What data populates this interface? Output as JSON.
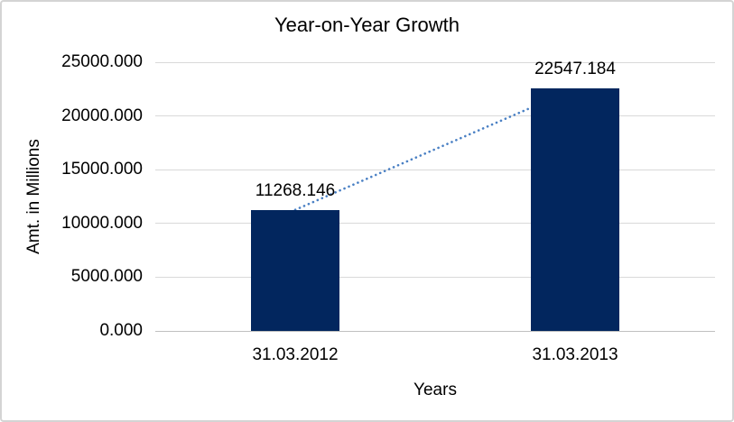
{
  "chart_data": {
    "type": "bar",
    "title": "Year-on-Year Growth",
    "xlabel": "Years",
    "ylabel": "Amt. in Millions",
    "categories": [
      "31.03.2012",
      "31.03.2013"
    ],
    "series": [
      {
        "name": "Amt. in Millions",
        "values": [
          11268.146,
          22547.184
        ]
      }
    ],
    "data_labels": [
      "11268.146",
      "22547.184"
    ],
    "ylim": [
      0,
      25000
    ],
    "yticks": [
      {
        "value": 0,
        "label": "0.000"
      },
      {
        "value": 5000,
        "label": "5000.000"
      },
      {
        "value": 10000,
        "label": "10000.000"
      },
      {
        "value": 15000,
        "label": "15000.000"
      },
      {
        "value": 20000,
        "label": "20000.000"
      },
      {
        "value": 25000,
        "label": "25000.000"
      }
    ],
    "grid": true,
    "legend": "none",
    "trendline": {
      "type": "linear",
      "style": "dotted",
      "from": "31.03.2012",
      "to": "31.03.2013"
    },
    "colors": {
      "bar": "#02265E",
      "trendline": "#4A80C4",
      "gridline": "#D9D9D9",
      "axis_line": "#C0C0C0",
      "text": "#000000",
      "frame_border": "#D4D4D4",
      "background": "#FFFFFF"
    }
  }
}
